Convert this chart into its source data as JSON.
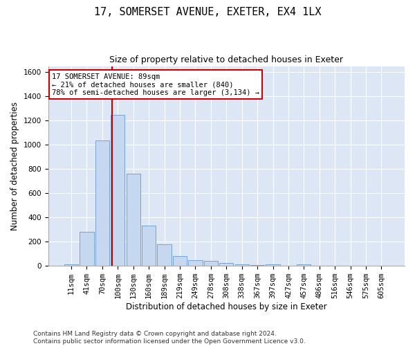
{
  "title": "17, SOMERSET AVENUE, EXETER, EX4 1LX",
  "subtitle": "Size of property relative to detached houses in Exeter",
  "xlabel": "Distribution of detached houses by size in Exeter",
  "ylabel": "Number of detached properties",
  "footer_line1": "Contains HM Land Registry data © Crown copyright and database right 2024.",
  "footer_line2": "Contains public sector information licensed under the Open Government Licence v3.0.",
  "bar_labels": [
    "11sqm",
    "41sqm",
    "70sqm",
    "100sqm",
    "130sqm",
    "160sqm",
    "189sqm",
    "219sqm",
    "249sqm",
    "278sqm",
    "308sqm",
    "338sqm",
    "367sqm",
    "397sqm",
    "427sqm",
    "457sqm",
    "486sqm",
    "516sqm",
    "546sqm",
    "575sqm",
    "605sqm"
  ],
  "bar_values": [
    10,
    280,
    1035,
    1250,
    760,
    330,
    180,
    80,
    45,
    40,
    25,
    15,
    5,
    15,
    0,
    15,
    0,
    0,
    0,
    0,
    0
  ],
  "bar_color": "#c5d8f0",
  "bar_edgecolor": "#6699cc",
  "background_color": "#dde6f5",
  "grid_color": "#ffffff",
  "ylim": [
    0,
    1650
  ],
  "yticks": [
    0,
    200,
    400,
    600,
    800,
    1000,
    1200,
    1400,
    1600
  ],
  "vline_color": "#cc0000",
  "annotation_text": "17 SOMERSET AVENUE: 89sqm\n← 21% of detached houses are smaller (840)\n78% of semi-detached houses are larger (3,134) →",
  "annotation_box_color": "#cc0000",
  "title_fontsize": 11,
  "subtitle_fontsize": 9,
  "axis_label_fontsize": 8.5,
  "tick_fontsize": 7.5,
  "footer_fontsize": 6.5
}
